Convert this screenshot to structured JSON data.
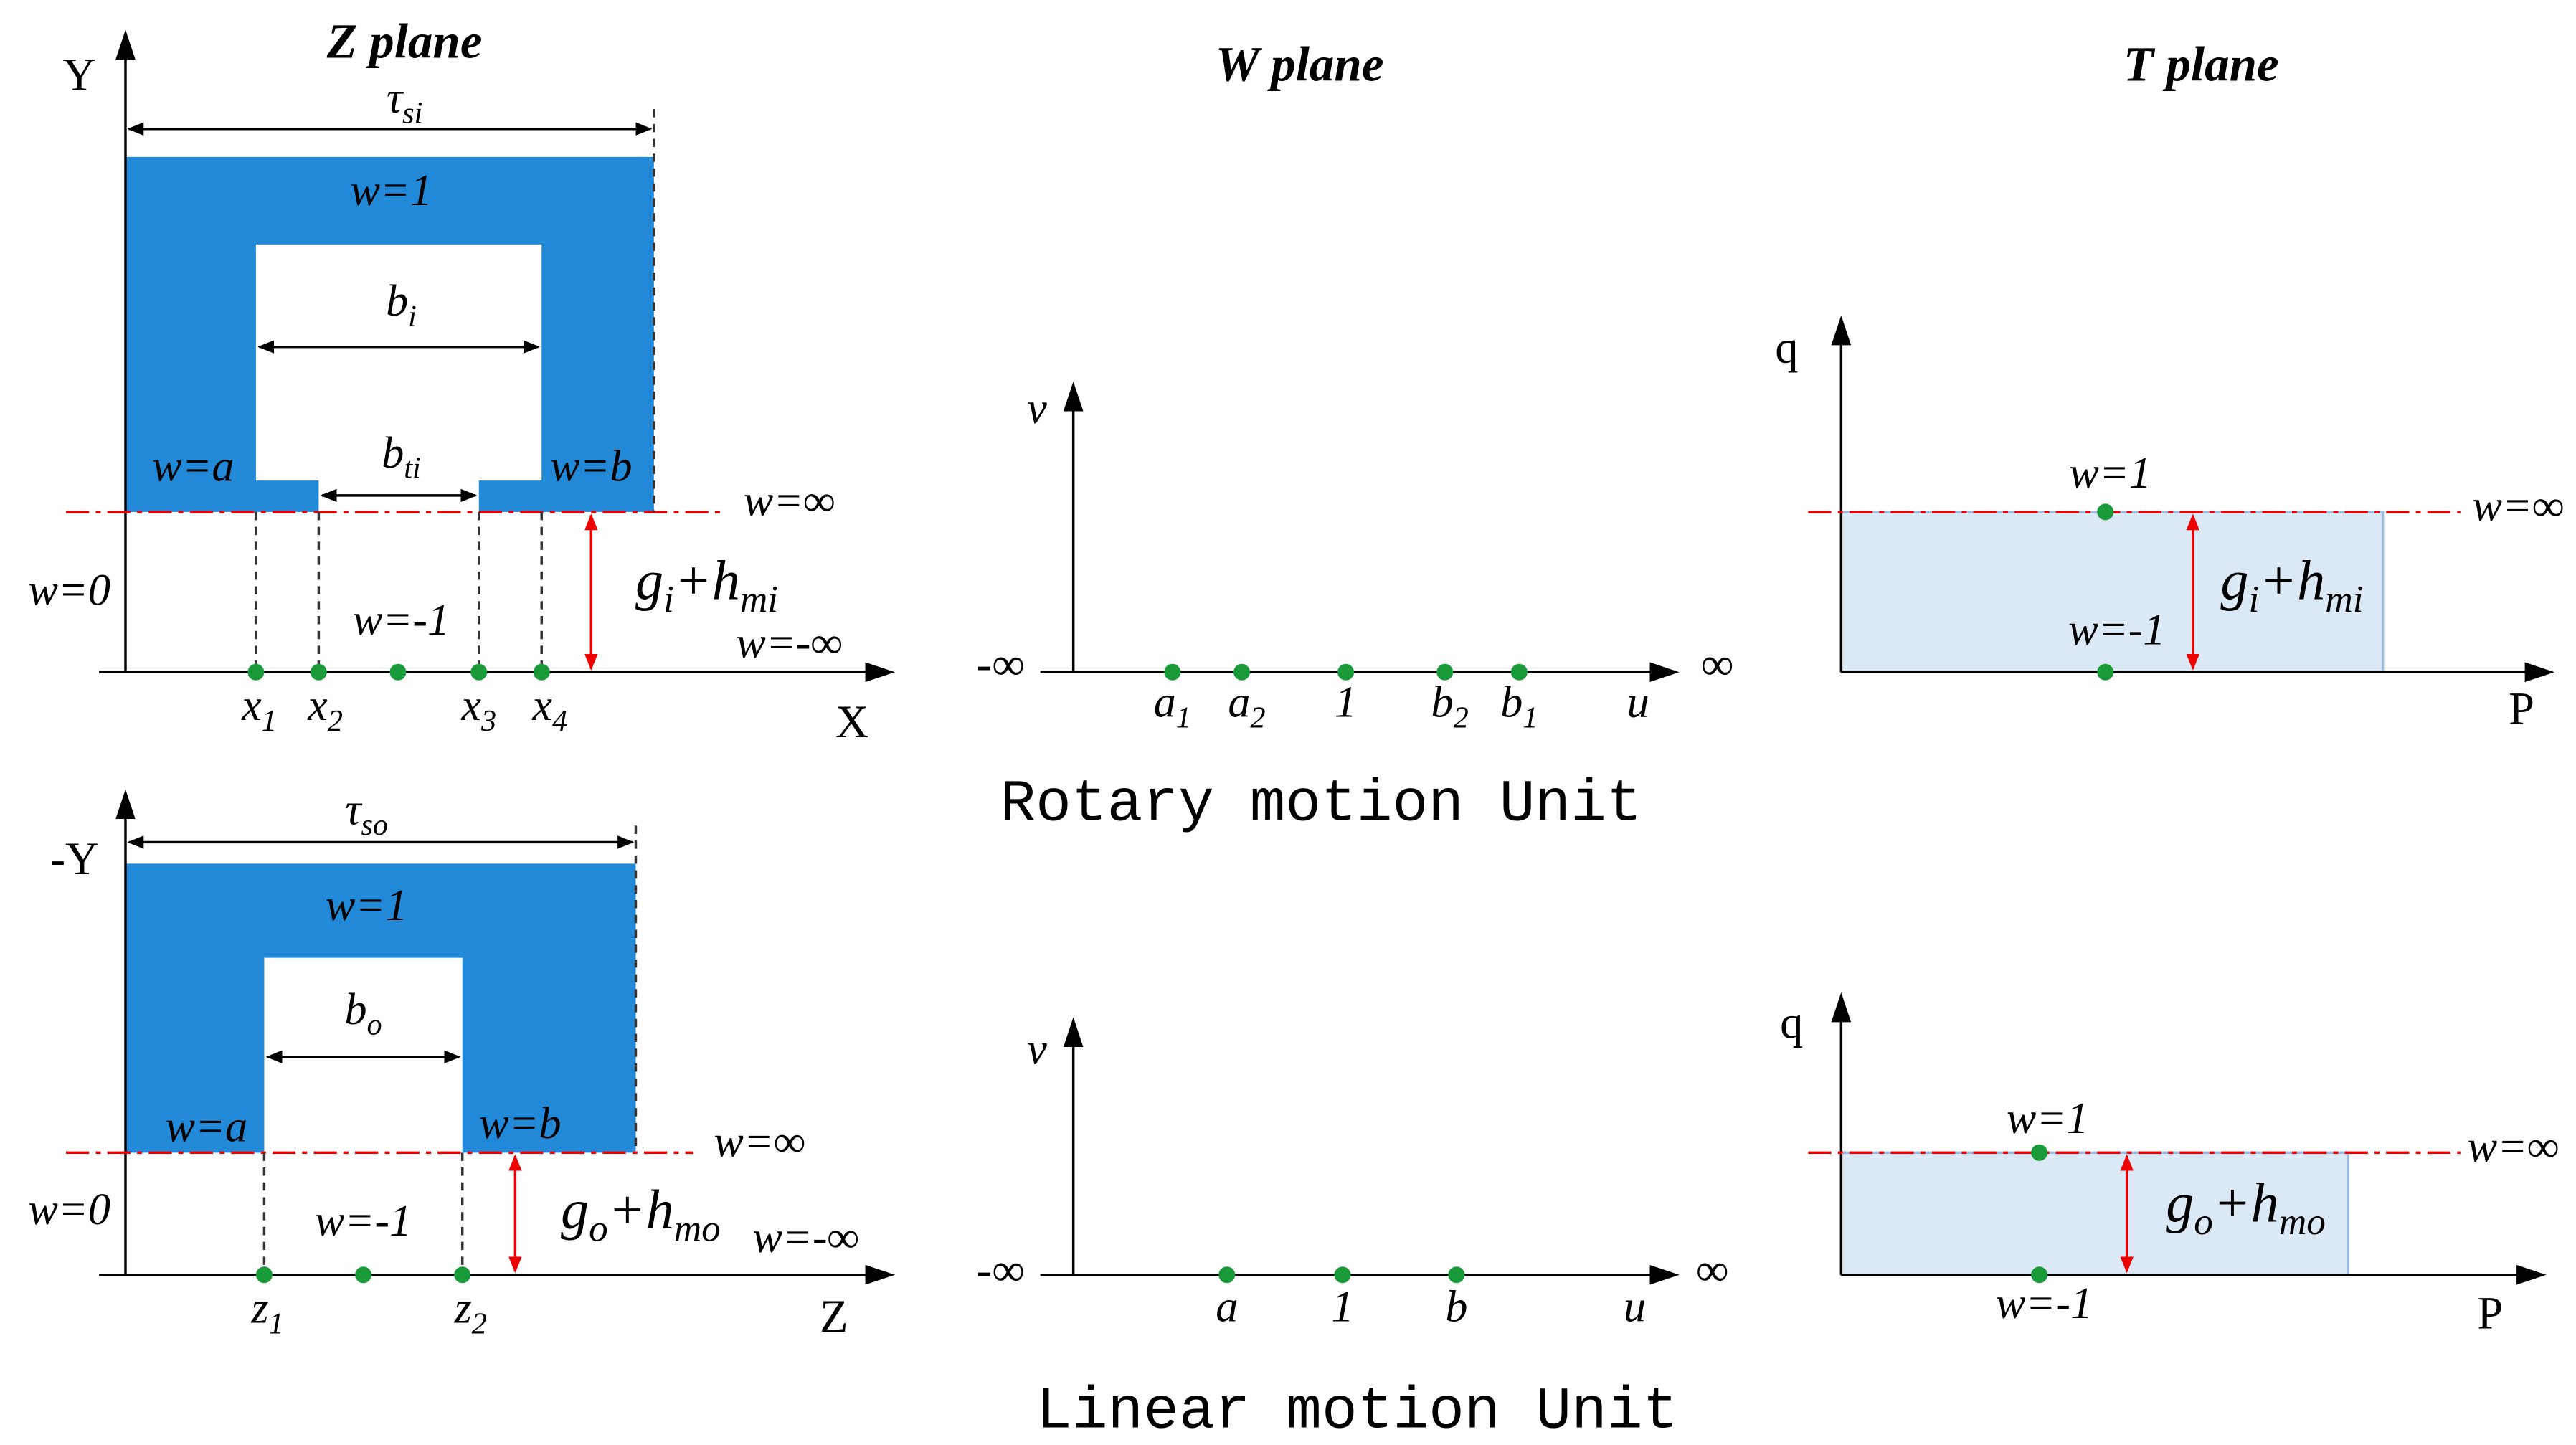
{
  "titles": {
    "z_plane": "Z plane",
    "w_plane": "W plane",
    "t_plane": "T plane"
  },
  "captions": {
    "rotary": "Rotary motion Unit",
    "linear": "Linear motion Unit"
  },
  "z_rotary": {
    "axis_y": "Y",
    "axis_x": "X",
    "tau": {
      "base": "τ",
      "sub": "si"
    },
    "w1": "w=1",
    "bi": {
      "base": "b",
      "sub": "i"
    },
    "bti": {
      "base": "b",
      "sub": "ti"
    },
    "wa": "w=a",
    "wb": "w=b",
    "winf": "w=∞",
    "w0": "w=0",
    "wm1": "w=-1",
    "wminf": "w=-∞",
    "gap": {
      "base": "g",
      "sub": "i",
      "base2": "+h",
      "sub2": "mi"
    },
    "points": [
      {
        "base": "x",
        "sub": "1"
      },
      {
        "base": "x",
        "sub": "2"
      },
      {
        "base": "x",
        "sub": "3"
      },
      {
        "base": "x",
        "sub": "4"
      }
    ]
  },
  "z_linear": {
    "axis_y": "-Y",
    "axis_x": "Z",
    "tau": {
      "base": "τ",
      "sub": "so"
    },
    "w1": "w=1",
    "bo": {
      "base": "b",
      "sub": "o"
    },
    "wa": "w=a",
    "wb": "w=b",
    "winf": "w=∞",
    "w0": "w=0",
    "wm1": "w=-1",
    "wminf": "w=-∞",
    "gap": {
      "base": "g",
      "sub": "o",
      "base2": "+h",
      "sub2": "mo"
    },
    "points": [
      {
        "base": "z",
        "sub": "1"
      },
      {
        "base": "z",
        "sub": "2"
      }
    ]
  },
  "w_rotary": {
    "axis_v": "v",
    "axis_u": "u",
    "minf": "-∞",
    "inf": "∞",
    "points": [
      {
        "base": "a",
        "sub": "1"
      },
      {
        "base": "a",
        "sub": "2"
      },
      {
        "base": "1"
      },
      {
        "base": "b",
        "sub": "2"
      },
      {
        "base": "b",
        "sub": "1"
      }
    ]
  },
  "w_linear": {
    "axis_v": "v",
    "axis_u": "u",
    "minf": "-∞",
    "inf": "∞",
    "points": [
      {
        "base": "a"
      },
      {
        "base": "1"
      },
      {
        "base": "b"
      }
    ]
  },
  "t_rotary": {
    "axis_q": "q",
    "axis_p": "P",
    "w1": "w=1",
    "wm1": "w=-1",
    "winf": "w=∞",
    "gap": {
      "base": "g",
      "sub": "i",
      "base2": "+h",
      "sub2": "mi"
    }
  },
  "t_linear": {
    "axis_q": "q",
    "axis_p": "P",
    "w1": "w=1",
    "wm1": "w=-1",
    "winf": "w=∞",
    "gap": {
      "base": "g",
      "sub": "o",
      "base2": "+h",
      "sub2": "mo"
    }
  }
}
